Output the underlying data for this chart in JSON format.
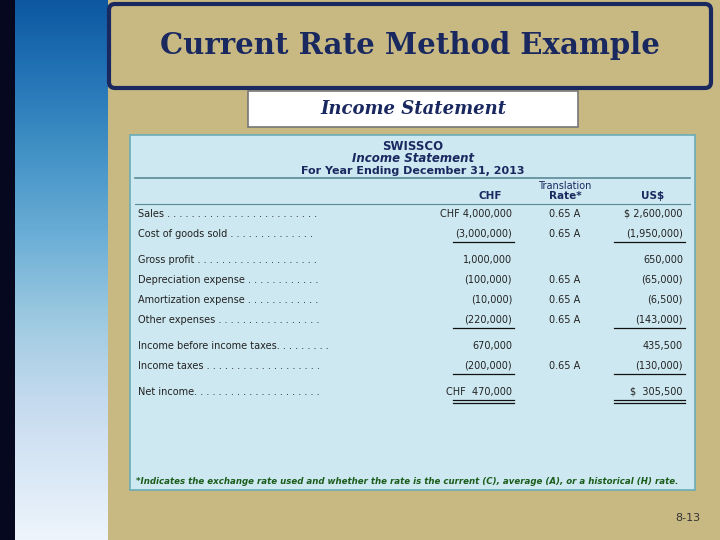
{
  "title": "Current Rate Method Example",
  "subtitle": "Income Statement",
  "company": "SWISSCO",
  "stmt_title": "Income Statement",
  "period": "For Year Ending December 31, 2013",
  "rows": [
    {
      "label": "Sales . . . . . . . . . . . . . . . . . . . . . . . . .",
      "chf": "CHF 4,000,000",
      "rate": "0.65 A",
      "usd": "$ 2,600,000",
      "bold": false,
      "underline_below": false
    },
    {
      "label": "Cost of goods sold . . . . . . . . . . . . . .",
      "chf": "(3,000,000)",
      "rate": "0.65 A",
      "usd": "(1,950,000)",
      "bold": false,
      "underline_below": true,
      "spacer_below": true
    },
    {
      "label": "Gross profit . . . . . . . . . . . . . . . . . . . .",
      "chf": "1,000,000",
      "rate": "",
      "usd": "650,000",
      "bold": false,
      "underline_below": false
    },
    {
      "label": "Depreciation expense . . . . . . . . . . . .",
      "chf": "(100,000)",
      "rate": "0.65 A",
      "usd": "(65,000)",
      "bold": false,
      "underline_below": false
    },
    {
      "label": "Amortization expense . . . . . . . . . . . .",
      "chf": "(10,000)",
      "rate": "0.65 A",
      "usd": "(6,500)",
      "bold": false,
      "underline_below": false
    },
    {
      "label": "Other expenses . . . . . . . . . . . . . . . . .",
      "chf": "(220,000)",
      "rate": "0.65 A",
      "usd": "(143,000)",
      "bold": false,
      "underline_below": true,
      "spacer_below": true
    },
    {
      "label": "Income before income taxes. . . . . . . . .",
      "chf": "670,000",
      "rate": "",
      "usd": "435,500",
      "bold": false,
      "underline_below": false
    },
    {
      "label": "Income taxes . . . . . . . . . . . . . . . . . . .",
      "chf": "(200,000)",
      "rate": "0.65 A",
      "usd": "(130,000)",
      "bold": false,
      "underline_below": true,
      "spacer_below": true
    },
    {
      "label": "Net income. . . . . . . . . . . . . . . . . . . . .",
      "chf": "CHF  470,000",
      "rate": "",
      "usd": "$  305,500",
      "bold": false,
      "underline_below": true,
      "double_underline": true
    }
  ],
  "footnote": "*Indicates the exchange rate used and whether the rate is the current (C), average (A), or a historical (H) rate.",
  "page_num": "8-13",
  "bg_color": "#c8b882",
  "left_panel_top": "#1a3a6c",
  "left_panel_bottom": "#0a0a30",
  "title_box_border": "#1a2860",
  "title_text_color": "#1a2860",
  "subtitle_box_border": "#888888",
  "subtitle_text_color": "#1a2860",
  "table_bg_color": "#cde8f0",
  "table_border_color": "#6aacb8",
  "footnote_color": "#1a5c1a",
  "header_text_color": "#1a2860",
  "row_text_color": "#222222"
}
